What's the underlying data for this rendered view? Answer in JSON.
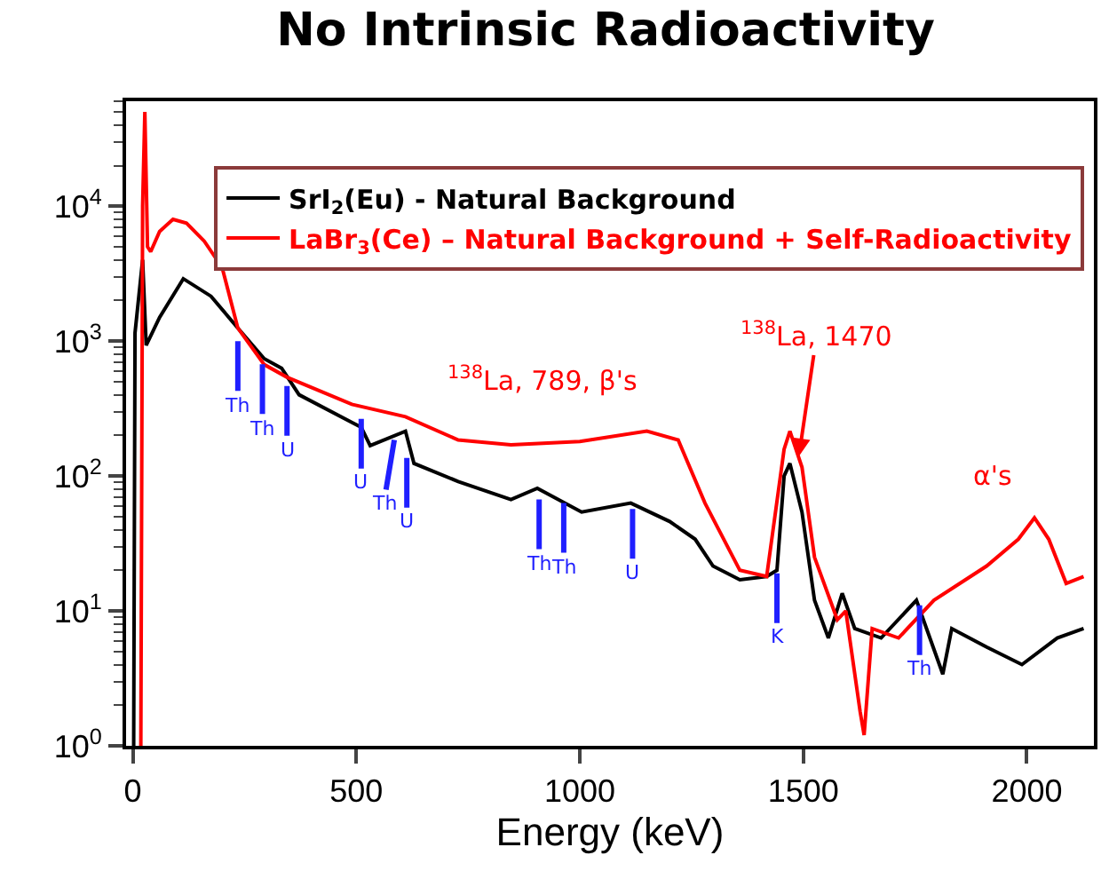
{
  "chart_data": {
    "type": "line",
    "title": "No Intrinsic Radioactivity",
    "xlabel": "Energy (keV)",
    "xlim": [
      -15,
      2150
    ],
    "xticks": [
      0,
      500,
      1000,
      1500,
      2000
    ],
    "ylim": [
      1,
      60000
    ],
    "yticks": [
      {
        "value": 1,
        "label": "10$^{0}$"
      },
      {
        "value": 10,
        "label": "10$^{1}$"
      },
      {
        "value": 100,
        "label": "10$^{2}$"
      },
      {
        "value": 1000,
        "label": "10$^{3}$"
      },
      {
        "value": 10000,
        "label": "10$^{4}$"
      }
    ],
    "log": "y",
    "grid": false,
    "legend": "top right",
    "marker": "none",
    "line_style": "solid",
    "series": [
      {
        "name": "SrI$_{2}$(Eu) - Natural Background",
        "color": "#000000",
        "x": [
          2,
          5,
          22,
          30,
          60,
          113,
          175,
          235,
          294,
          333,
          372,
          490,
          511,
          531,
          610,
          629,
          728,
          846,
          905,
          1004,
          1114,
          1201,
          1258,
          1298,
          1358,
          1418,
          1441,
          1457,
          1470,
          1497,
          1525,
          1556,
          1587,
          1615,
          1674,
          1753,
          1812,
          1832,
          1910,
          1989,
          2068,
          2127
        ],
        "values": [
          1,
          1150,
          4000,
          930,
          1500,
          2900,
          2150,
          1250,
          740,
          630,
          400,
          250,
          230,
          168,
          215,
          124,
          91,
          67,
          81,
          54,
          63,
          46,
          34,
          21.5,
          17,
          18,
          20,
          100,
          124,
          54,
          12,
          6.3,
          13.5,
          7.4,
          6.3,
          12,
          3.4,
          7.4,
          5.4,
          4,
          6.3,
          7.4
        ]
      },
      {
        "name": "LaBr$_{3}$(Ce) – Natural Background + Self-Radioactivity",
        "color": "#ff0000",
        "x": [
          18,
          22,
          27,
          33,
          40,
          60,
          90,
          120,
          160,
          200,
          235,
          294,
          345,
          490,
          610,
          728,
          846,
          1000,
          1150,
          1220,
          1280,
          1358,
          1418,
          1457,
          1470,
          1497,
          1525,
          1576,
          1595,
          1627,
          1636,
          1654,
          1713,
          1792,
          1910,
          1981,
          2017,
          2049,
          2088,
          2127
        ],
        "values": [
          1,
          10000,
          50000,
          5000,
          4600,
          6500,
          8000,
          7500,
          5500,
          3500,
          1250,
          670,
          540,
          340,
          275,
          185,
          170,
          180,
          215,
          185,
          63,
          20,
          18,
          158,
          215,
          116,
          25,
          8.6,
          10,
          1.8,
          1.2,
          7.4,
          6.3,
          12,
          21.5,
          34,
          49,
          34,
          16,
          18
        ]
      }
    ],
    "annotations": [
      "$^{138}$La, 789, β's",
      {
        "text": "$^{138}$La, 1470",
        "x": 1490,
        "y": 140
      },
      "α's",
      {
        "text": "Th",
        "x": 235,
        "y": 1000
      },
      {
        "text": "Th",
        "x": 290,
        "y": 674
      },
      {
        "text": "U",
        "x": 345,
        "y": 464
      },
      {
        "text": "U",
        "x": 511,
        "y": 265
      },
      {
        "text": "Th",
        "x": 585,
        "y": 185
      },
      {
        "text": "U",
        "x": 613,
        "y": 136
      },
      {
        "text": "Th",
        "x": 909,
        "y": 67
      },
      {
        "text": "Th",
        "x": 964,
        "y": 63
      },
      {
        "text": "U",
        "x": 1118,
        "y": 57
      },
      {
        "text": "K",
        "x": 1441,
        "y": 19
      },
      {
        "text": "Th",
        "x": 1760,
        "y": 11
      }
    ]
  }
}
